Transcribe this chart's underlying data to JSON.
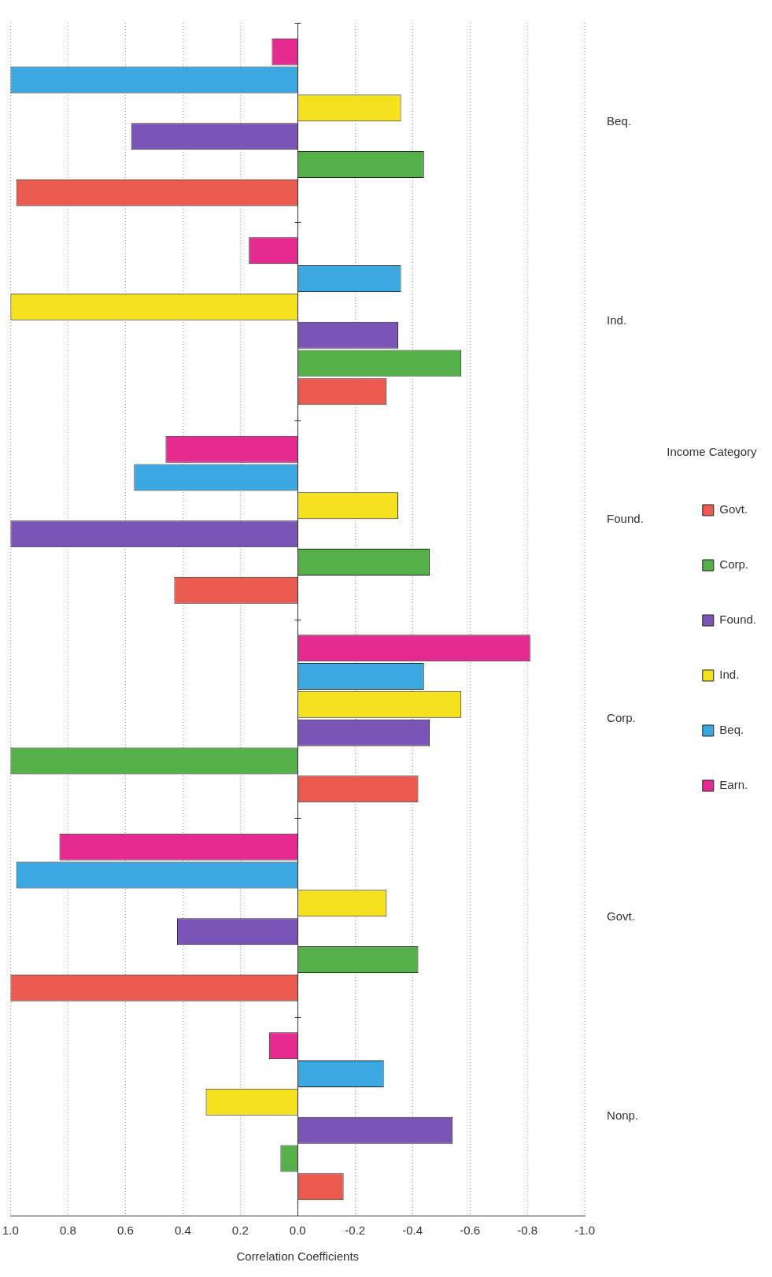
{
  "chart_data": {
    "type": "bar",
    "orientation": "horizontal",
    "xlabel": "Correlation Coefficients",
    "legend_title": "Income Category",
    "legend": "right",
    "grid": "x",
    "categories": [
      "Beq.",
      "Ind.",
      "Found.",
      "Corp.",
      "Govt.",
      "Nonp."
    ],
    "series": [
      {
        "name": "Govt.",
        "color": "#ea5a4e",
        "values": [
          0.98,
          -0.31,
          0.43,
          -0.42,
          1.0,
          -0.16
        ]
      },
      {
        "name": "Corp.",
        "color": "#55b04a",
        "values": [
          -0.44,
          -0.57,
          -0.46,
          1.0,
          -0.42,
          0.06
        ]
      },
      {
        "name": "Found.",
        "color": "#7a55b5",
        "values": [
          0.58,
          -0.35,
          1.0,
          -0.46,
          0.42,
          -0.54
        ]
      },
      {
        "name": "Ind.",
        "color": "#f5e11e",
        "values": [
          -0.36,
          1.0,
          -0.35,
          -0.57,
          -0.31,
          0.32
        ]
      },
      {
        "name": "Beq.",
        "color": "#3ca8e2",
        "values": [
          1.0,
          -0.36,
          0.57,
          -0.44,
          0.98,
          -0.3
        ]
      },
      {
        "name": "Earn.",
        "color": "#e52a90",
        "values": [
          0.09,
          0.17,
          0.46,
          -0.81,
          0.83,
          0.1
        ]
      }
    ],
    "xlim": [
      1.0,
      -1.0
    ],
    "xticks": [
      {
        "value": 1.0,
        "label": "1.0"
      },
      {
        "value": 0.8,
        "label": "0.8"
      },
      {
        "value": 0.6,
        "label": "0.6"
      },
      {
        "value": 0.4,
        "label": "0.4"
      },
      {
        "value": 0.2,
        "label": "0.2"
      },
      {
        "value": 0.0,
        "label": "0.0"
      },
      {
        "value": -0.2,
        "label": "-0.2"
      },
      {
        "value": -0.4,
        "label": "-0.4"
      },
      {
        "value": -0.6,
        "label": "-0.6"
      },
      {
        "value": -0.8,
        "label": "-0.8"
      },
      {
        "value": -1.0,
        "label": "-1.0"
      }
    ]
  }
}
